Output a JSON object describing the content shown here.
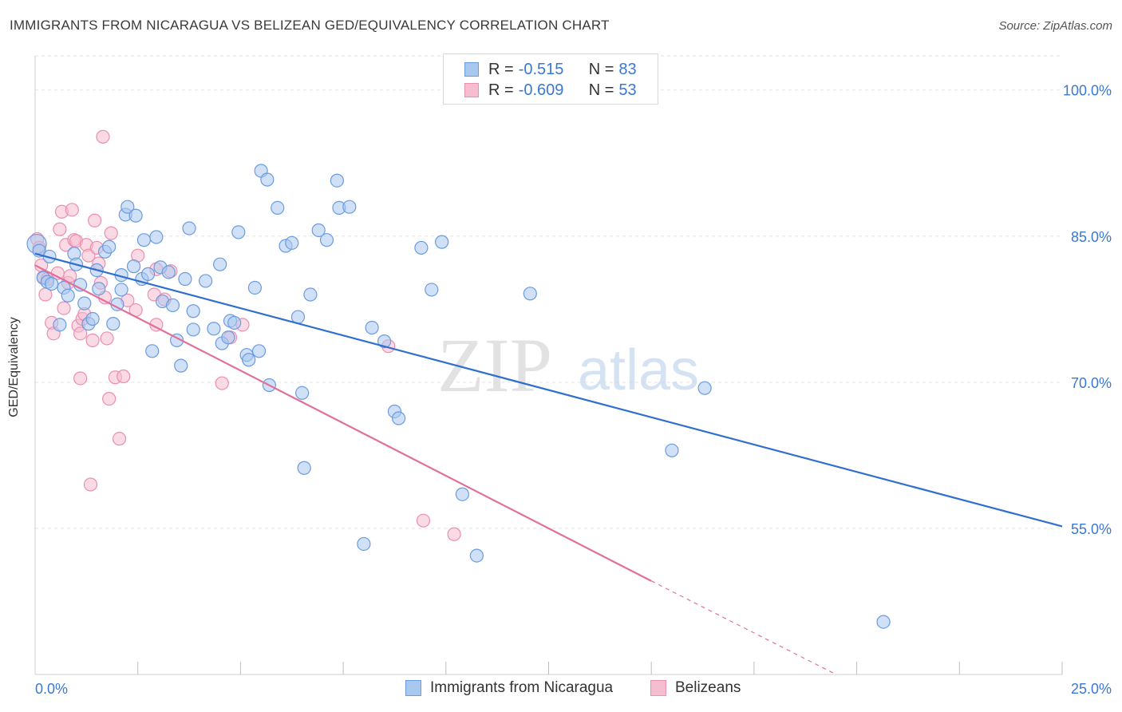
{
  "header": {
    "title": "IMMIGRANTS FROM NICARAGUA VS BELIZEAN GED/EQUIVALENCY CORRELATION CHART",
    "source": "Source: ZipAtlas.com"
  },
  "watermark": {
    "zip": "ZIP",
    "atlas": "atlas"
  },
  "legend": {
    "rows": [
      {
        "r_label": "R =",
        "r_value": "-0.515",
        "n_label": "N =",
        "n_value": "83"
      },
      {
        "r_label": "R =",
        "r_value": "-0.609",
        "n_label": "N =",
        "n_value": "53"
      }
    ]
  },
  "bottom_legend": {
    "series_a": "Immigrants from Nicaragua",
    "series_b": "Belizeans"
  },
  "colors": {
    "blue_fill": "#a9c8f0",
    "blue_stroke": "#6a9be0",
    "blue_line": "#2f6fcf",
    "pink_fill": "#f6bcd0",
    "pink_stroke": "#ea8fb0",
    "pink_line": "#e0709a",
    "tick_label": "#3a78d6",
    "grid": "#e3e3e3"
  },
  "chart_data": {
    "type": "scatter",
    "title": "IMMIGRANTS FROM NICARAGUA VS BELIZEAN GED/EQUIVALENCY CORRELATION CHART",
    "xlabel": "",
    "ylabel": "GED/Equivalency",
    "xlim": [
      0,
      25
    ],
    "ylim": [
      40,
      103.5
    ],
    "x_tick_labels": [
      "0.0%",
      "25.0%"
    ],
    "y_ticks": [
      55,
      70,
      85,
      100
    ],
    "y_tick_labels": [
      "55.0%",
      "70.0%",
      "85.0%",
      "100.0%"
    ],
    "grid": true,
    "legend_position": "top-center",
    "series": [
      {
        "name": "Immigrants from Nicaragua",
        "color": "#6a9be0",
        "trend": {
          "x": [
            0,
            25
          ],
          "y": [
            83.2,
            55.2
          ]
        },
        "points": [
          [
            0.04,
            84.2
          ],
          [
            0.1,
            83.5
          ],
          [
            0.2,
            80.7
          ],
          [
            0.3,
            80.3
          ],
          [
            0.35,
            82.9
          ],
          [
            0.4,
            80.1
          ],
          [
            0.6,
            75.9
          ],
          [
            0.7,
            79.7
          ],
          [
            0.8,
            78.9
          ],
          [
            0.95,
            83.2
          ],
          [
            1.0,
            82.1
          ],
          [
            1.1,
            80.0
          ],
          [
            1.2,
            78.1
          ],
          [
            1.3,
            76.0
          ],
          [
            1.4,
            76.5
          ],
          [
            1.5,
            81.5
          ],
          [
            1.55,
            79.6
          ],
          [
            1.7,
            83.4
          ],
          [
            1.8,
            83.9
          ],
          [
            1.9,
            76.0
          ],
          [
            2.0,
            78.0
          ],
          [
            2.1,
            81.0
          ],
          [
            2.2,
            87.2
          ],
          [
            2.25,
            88.0
          ],
          [
            2.45,
            87.1
          ],
          [
            2.4,
            81.9
          ],
          [
            2.6,
            80.6
          ],
          [
            2.65,
            84.6
          ],
          [
            2.75,
            81.1
          ],
          [
            2.85,
            73.2
          ],
          [
            2.95,
            84.9
          ],
          [
            3.05,
            81.8
          ],
          [
            3.25,
            81.3
          ],
          [
            3.1,
            78.3
          ],
          [
            3.35,
            77.9
          ],
          [
            3.45,
            74.3
          ],
          [
            3.55,
            71.7
          ],
          [
            3.65,
            80.6
          ],
          [
            3.75,
            85.8
          ],
          [
            3.85,
            77.3
          ],
          [
            3.85,
            75.4
          ],
          [
            4.15,
            80.4
          ],
          [
            4.35,
            75.5
          ],
          [
            4.5,
            82.1
          ],
          [
            4.55,
            74.0
          ],
          [
            4.7,
            74.6
          ],
          [
            4.75,
            76.3
          ],
          [
            4.85,
            76.1
          ],
          [
            4.95,
            85.4
          ],
          [
            5.15,
            72.8
          ],
          [
            5.2,
            72.3
          ],
          [
            5.35,
            79.7
          ],
          [
            5.45,
            73.2
          ],
          [
            5.5,
            91.7
          ],
          [
            5.65,
            90.8
          ],
          [
            5.7,
            69.7
          ],
          [
            5.9,
            87.9
          ],
          [
            6.1,
            84.0
          ],
          [
            6.25,
            84.3
          ],
          [
            6.4,
            76.7
          ],
          [
            6.5,
            68.9
          ],
          [
            6.55,
            61.2
          ],
          [
            6.7,
            79.0
          ],
          [
            6.9,
            85.6
          ],
          [
            7.1,
            84.6
          ],
          [
            7.35,
            90.7
          ],
          [
            7.4,
            87.9
          ],
          [
            7.65,
            88.0
          ],
          [
            8.0,
            53.4
          ],
          [
            8.2,
            75.6
          ],
          [
            8.5,
            74.2
          ],
          [
            8.75,
            67.0
          ],
          [
            8.85,
            66.3
          ],
          [
            9.4,
            83.8
          ],
          [
            9.65,
            79.5
          ],
          [
            9.9,
            84.4
          ],
          [
            10.4,
            58.5
          ],
          [
            10.75,
            52.2
          ],
          [
            12.05,
            79.1
          ],
          [
            15.5,
            63.0
          ],
          [
            16.3,
            69.4
          ],
          [
            20.65,
            45.4
          ],
          [
            2.1,
            79.5
          ]
        ]
      },
      {
        "name": "Belizeans",
        "color": "#ea8fb0",
        "trend": {
          "x": [
            0,
            15
          ],
          "y": [
            82.0,
            49.6
          ]
        },
        "trend_dashed": {
          "x": [
            15,
            19.5
          ],
          "y": [
            49.6,
            40.0
          ]
        },
        "points": [
          [
            0.05,
            84.7
          ],
          [
            0.1,
            83.8
          ],
          [
            0.15,
            82.0
          ],
          [
            0.2,
            80.8
          ],
          [
            0.25,
            79.0
          ],
          [
            0.3,
            80.6
          ],
          [
            0.4,
            76.1
          ],
          [
            0.45,
            75.0
          ],
          [
            0.55,
            81.2
          ],
          [
            0.6,
            85.7
          ],
          [
            0.7,
            77.6
          ],
          [
            0.65,
            87.5
          ],
          [
            0.75,
            84.1
          ],
          [
            0.8,
            80.2
          ],
          [
            0.85,
            80.9
          ],
          [
            0.9,
            87.7
          ],
          [
            0.95,
            84.6
          ],
          [
            1.0,
            84.5
          ],
          [
            1.05,
            75.8
          ],
          [
            1.1,
            70.4
          ],
          [
            1.1,
            75.0
          ],
          [
            1.15,
            76.5
          ],
          [
            1.2,
            77.0
          ],
          [
            1.25,
            84.1
          ],
          [
            1.3,
            83.0
          ],
          [
            1.35,
            59.5
          ],
          [
            1.4,
            74.3
          ],
          [
            1.45,
            86.6
          ],
          [
            1.5,
            83.8
          ],
          [
            1.55,
            82.2
          ],
          [
            1.6,
            80.2
          ],
          [
            1.65,
            95.2
          ],
          [
            1.7,
            78.7
          ],
          [
            1.75,
            74.5
          ],
          [
            1.8,
            68.3
          ],
          [
            1.85,
            85.3
          ],
          [
            1.95,
            70.5
          ],
          [
            2.05,
            64.2
          ],
          [
            2.15,
            70.6
          ],
          [
            2.25,
            78.4
          ],
          [
            2.45,
            77.4
          ],
          [
            2.5,
            83.0
          ],
          [
            2.9,
            79.0
          ],
          [
            2.95,
            75.9
          ],
          [
            3.15,
            78.5
          ],
          [
            3.3,
            81.4
          ],
          [
            4.55,
            69.9
          ],
          [
            4.75,
            74.6
          ],
          [
            5.05,
            75.9
          ],
          [
            8.6,
            73.7
          ],
          [
            9.45,
            55.8
          ],
          [
            10.2,
            54.4
          ],
          [
            2.95,
            81.6
          ]
        ]
      }
    ]
  }
}
